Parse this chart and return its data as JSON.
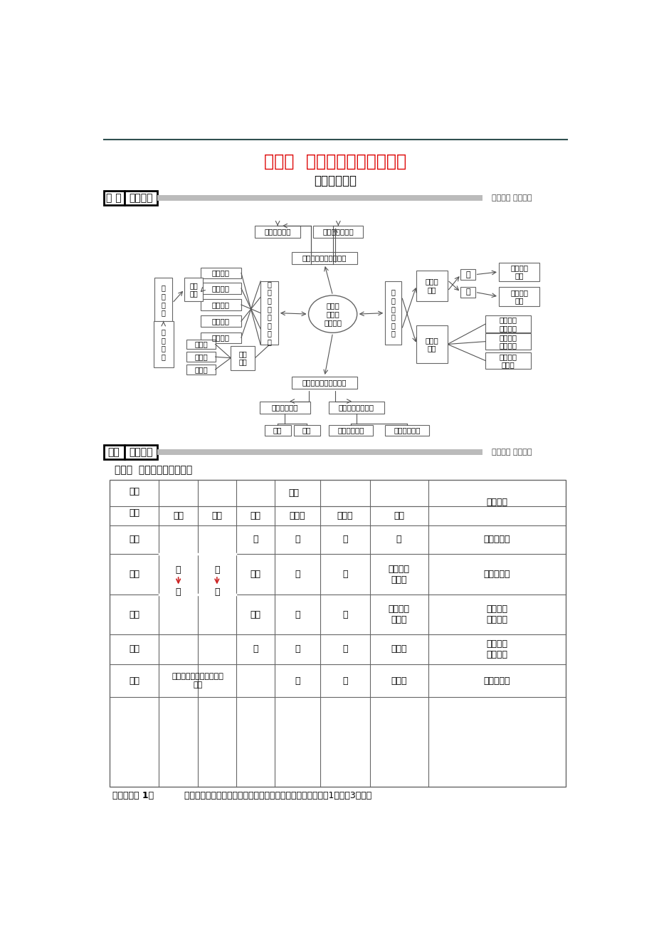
{
  "title_main": "第五章  交通运输布局及其影响",
  "title_sub": "章末整合提升",
  "sec1_left1": "知 识",
  "sec1_left2": "网络构建",
  "sec1_right": "梳理知识 把握主干",
  "sec2_left1": "专题",
  "sec2_left2": "归纳整合",
  "sec2_right": "拓展贯通 深度升华",
  "topic_title": "专题一  交通运输方式的选择",
  "center_ellipse": "交通运\n输布局\n及其影响",
  "top_main": "对聚落空间形态的影响",
  "top_sub1": "沿交通线扩展",
  "top_sub2": "基本不变或萎缩",
  "left_bar": "五\n种\n主\n要\n运\n输\n方\n式",
  "modes": [
    "铁路运输",
    "公路运输",
    "水路运输",
    "航空运输",
    "管道运输"
  ],
  "sel_box": "选\n择\n原\n则",
  "yd_box": "优点\n缺点",
  "mqh_box": "多\n快\n好\n省",
  "fz_box": "发展\n趋势",
  "trends": [
    "高速化",
    "大型化",
    "专业化"
  ],
  "bot_main": "对商业网点分布的影响",
  "bot_sub1": "对密度的影响",
  "bot_sub2": "对分布位置的影响",
  "bot_sub1a": "平原",
  "bot_sub1b": "山区",
  "bot_sub2a": "市区环路边缘",
  "bot_sub2b": "高速公路沿线",
  "right_bar": "交\n通\n运\n输\n布\n局",
  "trn_box": "交通运\n输网",
  "line_box": "线",
  "pt_box": "点",
  "rail_box": "铁路、公\n路等",
  "port_box": "港口、车\n站等",
  "cjc_box": "交通网\n层次",
  "levels": [
    "国家级综\n合运输网",
    "大区级综\n合运输网",
    "省级综合\n运输网"
  ],
  "table_headers1": [
    "运输\n\n方式",
    "特点",
    "选择依据"
  ],
  "table_headers2": [
    "运量",
    "运价",
    "运速",
    "灵活性",
    "连续性",
    "成本"
  ],
  "table_rows": [
    [
      "水路",
      "",
      "",
      "慢",
      "差",
      "差",
      "低",
      "大宗、远程"
    ],
    [
      "铁路",
      "",
      "",
      "较快",
      "差",
      "好",
      "投资大、\n占地广",
      "远程、量大"
    ],
    [
      "公路",
      "",
      "",
      "较慢",
      "好",
      "好",
      "短途运输\n成本低",
      "鲜货、活\n物、短途"
    ],
    [
      "航空",
      "",
      "",
      "快",
      "差",
      "差",
      "投资大",
      "贵重、急\n需、量少"
    ],
    [
      "管道",
      "损耗小、平稳安全、管理\n方便",
      "",
      "",
      "差",
      "好",
      "投资大",
      "液体、气体"
    ]
  ],
  "bottom_note1": "【对点训练 1】",
  "bottom_note2": "  下图表示四种货物在生产运输过程中的相关特点。读图完成（1）～（3）题。",
  "title_color": "#dd0000",
  "box_ec": "#666666",
  "line_color": "#555555",
  "section_fill": "#bbbbbb",
  "header_line_color": "#2f4f4f",
  "bg": "#ffffff"
}
